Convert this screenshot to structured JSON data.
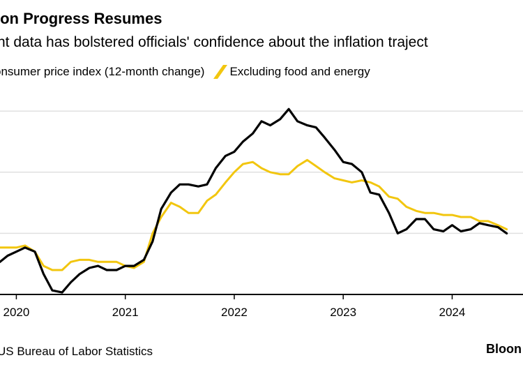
{
  "title": "ion Progress Resumes",
  "subtitle": "nt data has bolstered officials' confidence about the inflation traject",
  "legend": [
    {
      "label": "onsumer price index (12-month change)",
      "color": "#000000"
    },
    {
      "label": "Excluding food and energy",
      "color": "#f2c60f"
    }
  ],
  "source": "US Bureau of Labor Statistics",
  "brand": "Bloon",
  "colors": {
    "gridline": "#e0e0e0",
    "axis": "#000000"
  },
  "chart_data": {
    "type": "line",
    "grid": true,
    "x_tick_labels": [
      "2020",
      "2021",
      "2022",
      "2023",
      "2024"
    ],
    "x_tick_values": [
      2020,
      2021,
      2022,
      2023,
      2024
    ],
    "xlim": [
      2019.85,
      2024.65
    ],
    "ylim": [
      0,
      10
    ],
    "y_gridlines": [
      3,
      6,
      9
    ],
    "series": [
      {
        "name": "onsumer price index (12-month change)",
        "color": "#000000",
        "points": [
          [
            2019.85,
            1.6
          ],
          [
            2019.92,
            1.9
          ],
          [
            2020.0,
            2.1
          ],
          [
            2020.08,
            2.3
          ],
          [
            2020.17,
            2.1
          ],
          [
            2020.25,
            1.0
          ],
          [
            2020.33,
            0.2
          ],
          [
            2020.42,
            0.1
          ],
          [
            2020.5,
            0.6
          ],
          [
            2020.58,
            1.0
          ],
          [
            2020.67,
            1.3
          ],
          [
            2020.75,
            1.4
          ],
          [
            2020.83,
            1.2
          ],
          [
            2020.92,
            1.2
          ],
          [
            2021.0,
            1.4
          ],
          [
            2021.08,
            1.4
          ],
          [
            2021.17,
            1.7
          ],
          [
            2021.25,
            2.6
          ],
          [
            2021.33,
            4.2
          ],
          [
            2021.42,
            5.0
          ],
          [
            2021.5,
            5.4
          ],
          [
            2021.58,
            5.4
          ],
          [
            2021.67,
            5.3
          ],
          [
            2021.75,
            5.4
          ],
          [
            2021.83,
            6.2
          ],
          [
            2021.92,
            6.8
          ],
          [
            2022.0,
            7.0
          ],
          [
            2022.08,
            7.5
          ],
          [
            2022.17,
            7.9
          ],
          [
            2022.25,
            8.5
          ],
          [
            2022.33,
            8.3
          ],
          [
            2022.42,
            8.6
          ],
          [
            2022.5,
            9.1
          ],
          [
            2022.58,
            8.5
          ],
          [
            2022.67,
            8.3
          ],
          [
            2022.75,
            8.2
          ],
          [
            2022.83,
            7.7
          ],
          [
            2022.92,
            7.1
          ],
          [
            2023.0,
            6.5
          ],
          [
            2023.08,
            6.4
          ],
          [
            2023.17,
            6.0
          ],
          [
            2023.25,
            5.0
          ],
          [
            2023.33,
            4.9
          ],
          [
            2023.42,
            4.0
          ],
          [
            2023.5,
            3.0
          ],
          [
            2023.58,
            3.2
          ],
          [
            2023.67,
            3.7
          ],
          [
            2023.75,
            3.7
          ],
          [
            2023.83,
            3.2
          ],
          [
            2023.92,
            3.1
          ],
          [
            2024.0,
            3.4
          ],
          [
            2024.08,
            3.1
          ],
          [
            2024.17,
            3.2
          ],
          [
            2024.25,
            3.5
          ],
          [
            2024.33,
            3.4
          ],
          [
            2024.42,
            3.3
          ],
          [
            2024.5,
            3.0
          ]
        ]
      },
      {
        "name": "Excluding food and energy",
        "color": "#f2c60f",
        "points": [
          [
            2019.85,
            2.3
          ],
          [
            2019.92,
            2.3
          ],
          [
            2020.0,
            2.3
          ],
          [
            2020.08,
            2.4
          ],
          [
            2020.17,
            2.1
          ],
          [
            2020.25,
            1.4
          ],
          [
            2020.33,
            1.2
          ],
          [
            2020.42,
            1.2
          ],
          [
            2020.5,
            1.6
          ],
          [
            2020.58,
            1.7
          ],
          [
            2020.67,
            1.7
          ],
          [
            2020.75,
            1.6
          ],
          [
            2020.83,
            1.6
          ],
          [
            2020.92,
            1.6
          ],
          [
            2021.0,
            1.4
          ],
          [
            2021.08,
            1.3
          ],
          [
            2021.17,
            1.6
          ],
          [
            2021.25,
            3.0
          ],
          [
            2021.33,
            3.8
          ],
          [
            2021.42,
            4.5
          ],
          [
            2021.5,
            4.3
          ],
          [
            2021.58,
            4.0
          ],
          [
            2021.67,
            4.0
          ],
          [
            2021.75,
            4.6
          ],
          [
            2021.83,
            4.9
          ],
          [
            2021.92,
            5.5
          ],
          [
            2022.0,
            6.0
          ],
          [
            2022.08,
            6.4
          ],
          [
            2022.17,
            6.5
          ],
          [
            2022.25,
            6.2
          ],
          [
            2022.33,
            6.0
          ],
          [
            2022.42,
            5.9
          ],
          [
            2022.5,
            5.9
          ],
          [
            2022.58,
            6.3
          ],
          [
            2022.67,
            6.6
          ],
          [
            2022.75,
            6.3
          ],
          [
            2022.83,
            6.0
          ],
          [
            2022.92,
            5.7
          ],
          [
            2023.0,
            5.6
          ],
          [
            2023.08,
            5.5
          ],
          [
            2023.17,
            5.6
          ],
          [
            2023.25,
            5.5
          ],
          [
            2023.33,
            5.3
          ],
          [
            2023.42,
            4.8
          ],
          [
            2023.5,
            4.7
          ],
          [
            2023.58,
            4.3
          ],
          [
            2023.67,
            4.1
          ],
          [
            2023.75,
            4.0
          ],
          [
            2023.83,
            4.0
          ],
          [
            2023.92,
            3.9
          ],
          [
            2024.0,
            3.9
          ],
          [
            2024.08,
            3.8
          ],
          [
            2024.17,
            3.8
          ],
          [
            2024.25,
            3.6
          ],
          [
            2024.33,
            3.6
          ],
          [
            2024.42,
            3.4
          ],
          [
            2024.5,
            3.2
          ]
        ]
      }
    ]
  }
}
